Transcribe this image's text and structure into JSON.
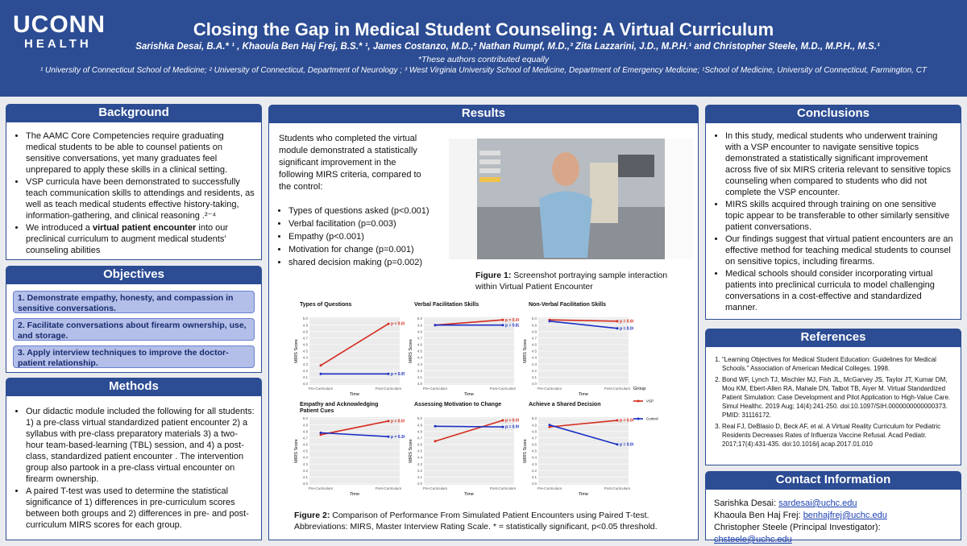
{
  "header": {
    "logo_top": "UCONN",
    "logo_bottom": "HEALTH",
    "title": "Closing the Gap in Medical Student Counseling: A Virtual Curriculum",
    "authors": "Sarishka Desai, B.A.* ¹ , Khaoula Ben Haj Frej, B.S.* ¹, James Costanzo, M.D.,² Nathan Rumpf, M.D.,³ Zita Lazzarini, J.D., M.P.H.¹ and Christopher Steele, M.D., M.P.H., M.S.¹",
    "note": "*These authors contributed equally",
    "affiliations": "¹ University of Connecticut School of Medicine; ² University of Connecticut, Department of Neurology ; ³ West Virginia University School of Medicine, Department of Emergency Medicine; ¹School of Medicine, University of Connecticut, Farmington, CT"
  },
  "background": {
    "heading": "Background",
    "bullets": [
      "The AAMC Core Competencies require graduating medical students to be able to counsel patients on sensitive conversations, yet many graduates feel unprepared to apply these skills in a clinical setting.",
      "VSP curricula have been demonstrated to successfully teach communication skills to attendings and residents, as well as teach medical students effective history-taking, information-gathering, and clinical reasoning .²⁻⁴",
      {
        "before": "We introduced a ",
        "bold": "virtual patient encounter",
        "after": " into our preclinical curriculum to augment medical students' counseling abilities"
      }
    ]
  },
  "objectives": {
    "heading": "Objectives",
    "items": [
      "1. Demonstrate empathy, honesty, and compassion in sensitive conversations.",
      "2. Facilitate conversations about firearm ownership, use, and storage.",
      "3. Apply interview techniques to improve the doctor-patient relationship."
    ]
  },
  "methods": {
    "heading": "Methods",
    "bullets": [
      "Our didactic module included the following for all students: 1) a pre-class virtual standardized patient encounter 2) a syllabus with pre-class preparatory materials  3) a two-hour team-based-learning (TBL) session, and 4) a post-class, standardized patient encounter . The intervention group also partook in a pre-class virtual encounter on firearm ownership.",
      " A paired T-test was used to determine the statistical significance of 1) differences in pre-curriculum scores between both groups and 2) differences in pre- and post-curriculum MIRS scores for each group."
    ]
  },
  "results": {
    "heading": "Results",
    "intro": "Students who completed the virtual module demonstrated a statistically significant improvement in the following MIRS criteria, compared to the control:",
    "bullets": [
      "Types of questions asked (p<0.001)",
      "Verbal facilitation (p=0.003)",
      "Empathy (p<0.001)",
      "Motivation for change (p=0.001)",
      "shared decision making (p=0.002)"
    ],
    "figure1": {
      "label": "Figure 1:",
      "caption": "  Screenshot portraying sample interaction within Virtual Patient Encounter"
    },
    "figure2": {
      "label": "Figure 2:",
      "caption": "  Comparison of Performance From Simulated Patient Encounters using Paired T-test.",
      "abbreviations": "Abbreviations: MIRS, Master Interview Rating Scale. * = statistically significant, p<0.05 threshold.",
      "x_categories": [
        "Pre-Curriculum",
        "Post-Curriculum"
      ],
      "x_title": "Time",
      "y_title": "MIRS Score",
      "ylim": [
        3.98,
        5.02
      ],
      "yticks": [
        {
          "value": 4,
          "label": "4.0"
        },
        4.1,
        4.2,
        4.3,
        4.4,
        4.5,
        4.6,
        4.7,
        4.8,
        4.9,
        {
          "value": 5,
          "label": "5.0"
        }
      ],
      "legend_title": "Group",
      "series_names": [
        "VSP",
        "Control"
      ],
      "colors": [
        "#d42b1e",
        "#1b2fc4"
      ],
      "charts": [
        {
          "title": "Types of Questions",
          "series": [
            {
              "values": [
                4.28,
                4.92
              ],
              "p_label": "p < 0.001*"
            },
            {
              "values": [
                4.15,
                4.15
              ],
              "p_label": "p = 0.95"
            }
          ]
        },
        {
          "title": "Verbal Facilitation Skills",
          "series": [
            {
              "values": [
                4.9,
                4.98
              ],
              "p_label": "p = 0.003*"
            },
            {
              "values": [
                4.9,
                4.9
              ],
              "p_label": "p = 0.82"
            }
          ]
        },
        {
          "title": "Non-Verbal Facilitation Skills",
          "series": [
            {
              "values": [
                4.98,
                4.96
              ],
              "p_label": "p = 0.66"
            },
            {
              "values": [
                4.96,
                4.85
              ],
              "p_label": "p = 0.002*"
            }
          ]
        },
        {
          "title": "Empathy and Acknowledging Patient Cues",
          "series": [
            {
              "values": [
                4.75,
                4.96
              ],
              "p_label": "p < 0.001*"
            },
            {
              "values": [
                4.78,
                4.72
              ],
              "p_label": "p = 0.36"
            }
          ]
        },
        {
          "title": "Assessing Motivation to Change",
          "series": [
            {
              "values": [
                4.65,
                4.97
              ],
              "p_label": "p = 0.001*"
            },
            {
              "values": [
                4.88,
                4.87
              ],
              "p_label": "p = 0.90"
            }
          ]
        },
        {
          "title": "Achieve a Shared Decision",
          "series": [
            {
              "values": [
                4.87,
                4.97
              ],
              "p_label": "p = 0.002*"
            },
            {
              "values": [
                4.9,
                4.6
              ],
              "p_label": "p = 0.002*"
            }
          ]
        }
      ]
    }
  },
  "conclusions": {
    "heading": "Conclusions",
    "bullets": [
      "In this study, medical students who underwent training with a VSP encounter to navigate sensitive topics demonstrated a statistically significant improvement across five of six MIRS criteria relevant to sensitive topics counseling when compared to students who did not complete the VSP encounter.",
      "MIRS skills acquired through training on one sensitive topic appear to be transferable to other similarly sensitive patient conversations.",
      "Our findings suggest that virtual patient encounters are an effective method for teaching medical students to counsel on sensitive topics, including firearms.",
      "Medical schools should consider incorporating virtual patients into preclinical curricula to model challenging conversations in a cost-effective and standardized manner."
    ]
  },
  "references": {
    "heading": "References",
    "items": [
      "“Learning Objectives for Medical Student Education: Guidelines for Medical Schools.” Association of American Medical Colleges. 1998.",
      "Bond WF, Lynch TJ, Mischler MJ, Fish JL, McGarvey JS, Taylor JT, Kumar DM, Mou KM, Ebert-Allen RA, Mahale DN, Talbot TB, Aiyer M. Virtual Standardized Patient Simulation: Case Development and Pilot Application to High-Value Care. Simul Healthc. 2019 Aug; 14(4):241-250. doi:10.1097/SIH.0000000000000373. PMID: 31116172.",
      "Real FJ, DeBlasio D, Beck AF, et al. A Virtual Reality Curriculum for Pediatric Residents Decreases Rates of Influenza Vaccine Refusal. Acad Pediatr. 2017;17(4):431-435. doi:10.1016/j.acap.2017.01.010"
    ]
  },
  "contact": {
    "heading": "Contact Information",
    "people": [
      {
        "name": "Sarishka Desai:",
        "email": "sardesai@uchc.edu"
      },
      {
        "name": "Khaoula Ben Haj Frej:",
        "email": "benhajfrej@uchc.edu"
      },
      {
        "name": "Christopher Steele (Principal Investigator):",
        "email": "chsteele@uchc.edu"
      }
    ]
  }
}
